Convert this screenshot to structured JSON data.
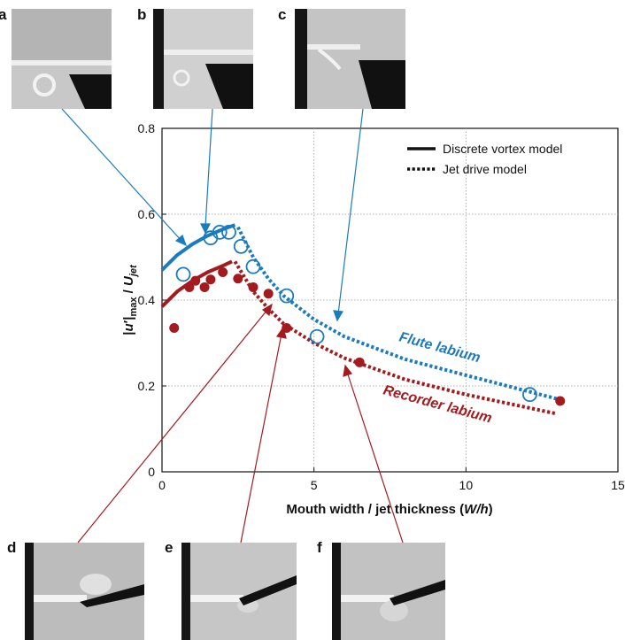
{
  "panels": [
    "a",
    "b",
    "c",
    "d",
    "e",
    "f"
  ],
  "chart_data": {
    "type": "line",
    "xlim": [
      0,
      15
    ],
    "ylim": [
      0,
      0.8
    ],
    "xticks": [
      "0",
      "5",
      "10",
      "15"
    ],
    "yticks": [
      "0",
      "0.2",
      "0.4",
      "0.6",
      "0.8"
    ],
    "xlabel": {
      "main": "Mouth width / jet thickness (",
      "var": "W/h",
      "close": ")"
    },
    "ylabel": {
      "bar1": "|",
      "u": "u",
      "prime": "′|",
      "sub": "max",
      "slash": " / ",
      "U": "U",
      "jet": "jet"
    },
    "grid": true,
    "legend_position": "top-right",
    "legend": [
      {
        "label": "Discrete vortex model",
        "style": "solid"
      },
      {
        "label": "Jet drive model",
        "style": "dotted"
      }
    ],
    "colors": {
      "flute": "#1a7bbf",
      "recorder": "#a31a1f"
    },
    "annotations": [
      {
        "text": "Flute labium",
        "color": "#1a7bbf"
      },
      {
        "text": "Recorder labium",
        "color": "#a31a1f"
      }
    ],
    "series": [
      {
        "name": "Flute labium",
        "kind": "solid",
        "color": "#1a7bbf",
        "x": [
          0,
          0.5,
          1.0,
          1.5,
          2.0,
          2.4
        ],
        "y": [
          0.47,
          0.505,
          0.53,
          0.55,
          0.565,
          0.575
        ]
      },
      {
        "name": "Flute labium",
        "kind": "dotted",
        "color": "#1a7bbf",
        "x": [
          2.5,
          3.0,
          3.5,
          4.0,
          5.0,
          6.0,
          8.0,
          10.0,
          13.0
        ],
        "y": [
          0.57,
          0.5,
          0.45,
          0.41,
          0.355,
          0.315,
          0.262,
          0.225,
          0.17
        ]
      },
      {
        "name": "Recorder labium",
        "kind": "solid",
        "color": "#a31a1f",
        "x": [
          0,
          0.5,
          1.0,
          1.5,
          2.0,
          2.3
        ],
        "y": [
          0.385,
          0.42,
          0.445,
          0.465,
          0.48,
          0.49
        ]
      },
      {
        "name": "Recorder labium",
        "kind": "dotted",
        "color": "#a31a1f",
        "x": [
          2.4,
          3.0,
          3.5,
          4.0,
          5.0,
          6.0,
          8.0,
          10.0,
          13.0
        ],
        "y": [
          0.49,
          0.42,
          0.38,
          0.345,
          0.3,
          0.265,
          0.215,
          0.18,
          0.135
        ]
      },
      {
        "name": "Flute labium",
        "kind": "open-markers",
        "color": "#1a7bbf",
        "x": [
          0.7,
          1.6,
          1.9,
          2.2,
          2.6,
          3.0,
          4.1,
          5.1,
          12.1
        ],
        "y": [
          0.46,
          0.545,
          0.558,
          0.558,
          0.525,
          0.478,
          0.41,
          0.315,
          0.18
        ]
      },
      {
        "name": "Recorder labium",
        "kind": "filled-markers",
        "color": "#a31a1f",
        "x": [
          0.4,
          0.9,
          1.1,
          1.4,
          1.6,
          2.0,
          2.5,
          3.0,
          3.5,
          4.1,
          6.5,
          13.1
        ],
        "y": [
          0.335,
          0.43,
          0.445,
          0.43,
          0.448,
          0.465,
          0.45,
          0.43,
          0.415,
          0.335,
          0.255,
          0.165
        ]
      }
    ]
  }
}
